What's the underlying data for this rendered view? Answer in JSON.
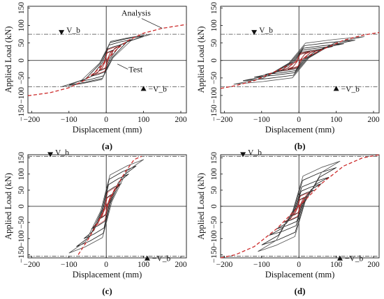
{
  "chart_data": [
    {
      "type": "line",
      "panel": "(a)",
      "xlabel": "Displacement (mm)",
      "ylabel": "Applied Load (kN)",
      "xlim": [
        -210,
        215
      ],
      "ylim": [
        -150,
        155
      ],
      "xticks": [
        -200,
        -100,
        0,
        100,
        200
      ],
      "yticks": [
        150,
        100,
        50,
        0,
        -50,
        -100,
        -150
      ],
      "vb_pos_label": "V_b",
      "vb_neg_label": "−V_b",
      "vb_value": 75,
      "annotations": [
        "Analysis",
        "Test"
      ],
      "series": [
        {
          "name": "Analysis",
          "color": "#cc2a2a",
          "style": "dashed",
          "x": [
            -210,
            -150,
            -100,
            -60,
            -30,
            0,
            30,
            60,
            100,
            150,
            215
          ],
          "y": [
            -101,
            -92,
            -78,
            -58,
            -34,
            0,
            34,
            58,
            78,
            92,
            103
          ]
        },
        {
          "name": "Test",
          "color": "#222222",
          "style": "solid",
          "x": [
            -115,
            -100,
            -60,
            -30,
            -10,
            0,
            20,
            45,
            75,
            95,
            120
          ],
          "y": [
            -75,
            -70,
            -57,
            -42,
            -28,
            -10,
            18,
            40,
            62,
            70,
            75
          ]
        }
      ],
      "loop_amplitudes_mm": [
        20,
        40,
        70,
        100,
        120
      ],
      "loop_loads_kN": [
        30,
        45,
        60,
        70,
        75
      ]
    },
    {
      "type": "line",
      "panel": "(b)",
      "xlabel": "Displacement (mm)",
      "ylabel": "Applied Load (kN)",
      "xlim": [
        -210,
        215
      ],
      "ylim": [
        -150,
        155
      ],
      "xticks": [
        -200,
        -100,
        0,
        100,
        200
      ],
      "yticks": [
        150,
        100,
        50,
        0,
        -50,
        -100,
        -150
      ],
      "vb_pos_label": "V_b",
      "vb_neg_label": "−V_b",
      "vb_value": 75,
      "series": [
        {
          "name": "Analysis",
          "color": "#cc2a2a",
          "style": "dashed",
          "x": [
            -210,
            -170,
            -120,
            -60,
            0,
            60,
            120,
            170,
            215
          ],
          "y": [
            -80,
            -72,
            -58,
            -30,
            0,
            30,
            58,
            72,
            80
          ]
        },
        {
          "name": "Test",
          "color": "#222222",
          "style": "solid",
          "x": [
            -185,
            -150,
            -100,
            -50,
            0,
            50,
            100,
            150,
            175
          ],
          "y": [
            -45,
            -40,
            -35,
            -25,
            15,
            30,
            45,
            60,
            68
          ]
        }
      ],
      "loop_amplitudes_mm": [
        30,
        60,
        90,
        120,
        150,
        175
      ],
      "loop_loads_kN": [
        25,
        32,
        40,
        48,
        58,
        68
      ]
    },
    {
      "type": "line",
      "panel": "(c)",
      "xlabel": "Displacement (mm)",
      "ylabel": "Applied Load (kN)",
      "xlim": [
        -210,
        215
      ],
      "ylim": [
        -160,
        160
      ],
      "xticks": [
        -200,
        -100,
        0,
        100,
        200
      ],
      "yticks": [
        150,
        100,
        50,
        0,
        -50,
        -100,
        -150
      ],
      "vb_pos_label": "V_b",
      "vb_neg_label": "−V_b",
      "vb_value": 155,
      "series": [
        {
          "name": "Analysis",
          "color": "#cc2a2a",
          "style": "dashed",
          "x": [
            -75,
            -50,
            -25,
            0,
            25,
            50,
            75,
            95
          ],
          "y": [
            -150,
            -105,
            -55,
            0,
            55,
            105,
            145,
            155
          ]
        },
        {
          "name": "Test",
          "color": "#222222",
          "style": "solid",
          "x": [
            -105,
            -80,
            -50,
            -20,
            0,
            20,
            50,
            80,
            100
          ],
          "y": [
            -135,
            -110,
            -80,
            -40,
            0,
            40,
            90,
            135,
            150
          ]
        }
      ],
      "loop_amplitudes_mm": [
        20,
        40,
        60,
        80,
        100
      ],
      "loop_loads_kN": [
        40,
        70,
        100,
        125,
        145
      ]
    },
    {
      "type": "line",
      "panel": "(d)",
      "xlabel": "Displacement (mm)",
      "ylabel": "Applied Load (kN)",
      "xlim": [
        -210,
        215
      ],
      "ylim": [
        -160,
        160
      ],
      "xticks": [
        -200,
        -100,
        0,
        100,
        200
      ],
      "yticks": [
        150,
        100,
        50,
        0,
        -50,
        -100,
        -150
      ],
      "vb_pos_label": "V_b",
      "vb_neg_label": "−V_b",
      "vb_value": 155,
      "series": [
        {
          "name": "Analysis",
          "color": "#cc2a2a",
          "style": "dashed",
          "x": [
            -210,
            -170,
            -120,
            -60,
            0,
            60,
            120,
            170,
            215
          ],
          "y": [
            -160,
            -150,
            -125,
            -70,
            0,
            70,
            125,
            150,
            160
          ]
        },
        {
          "name": "Test",
          "color": "#222222",
          "style": "solid",
          "x": [
            -95,
            -75,
            -45,
            -20,
            0,
            20,
            45,
            75,
            110
          ],
          "y": [
            -90,
            -75,
            -55,
            -30,
            0,
            30,
            60,
            95,
            140
          ]
        }
      ],
      "loop_amplitudes_mm": [
        20,
        40,
        60,
        80,
        100,
        110
      ],
      "loop_loads_kN": [
        30,
        50,
        70,
        90,
        120,
        140
      ]
    }
  ],
  "colors": {
    "analysis": "#cc2a2a",
    "test": "#222222",
    "axis": "#111111",
    "vb_line": "#444444"
  }
}
